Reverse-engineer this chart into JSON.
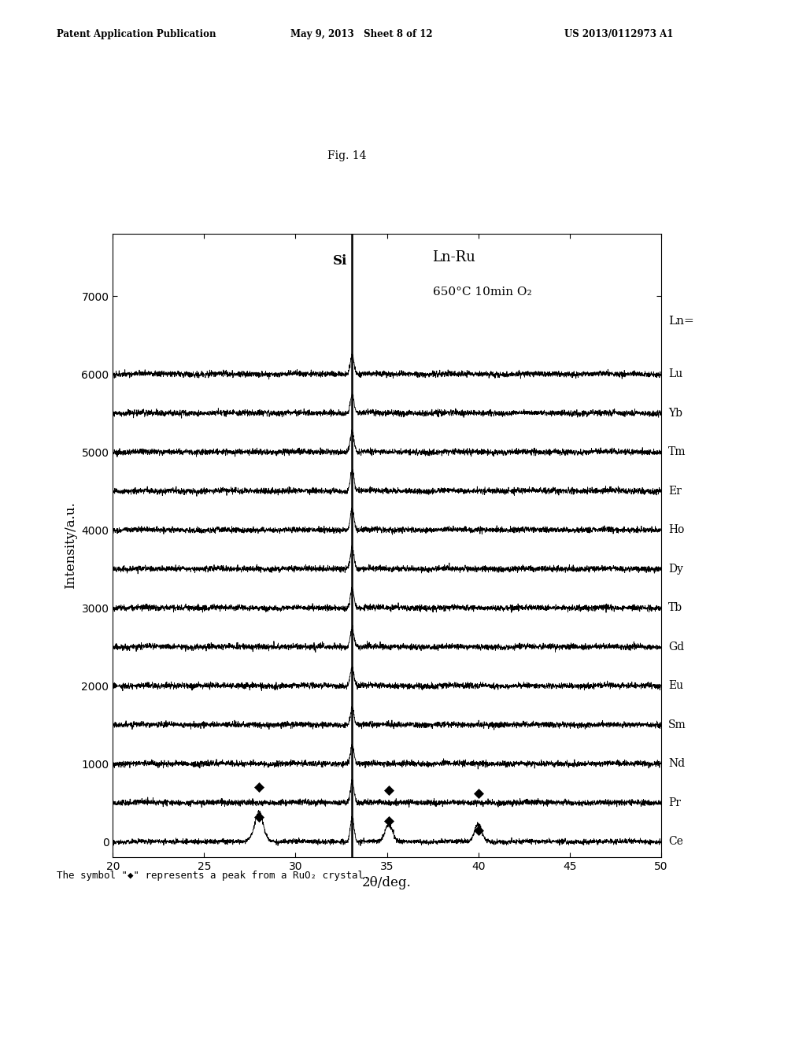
{
  "title": "Fig. 14",
  "xlabel": "2θ/deg.",
  "ylabel": "Intensity/a.u.",
  "xlim": [
    20,
    50
  ],
  "ylim": [
    -200,
    7800
  ],
  "xticks": [
    20,
    25,
    30,
    35,
    40,
    45,
    50
  ],
  "yticks": [
    0,
    1000,
    2000,
    3000,
    4000,
    5000,
    6000,
    7000
  ],
  "series_labels": [
    "Lu",
    "Yb",
    "Tm",
    "Er",
    "Ho",
    "Dy",
    "Tb",
    "Gd",
    "Eu",
    "Sm",
    "Nd",
    "Pr",
    "Ce"
  ],
  "series_offsets": [
    6000,
    5500,
    5000,
    4500,
    4000,
    3500,
    3000,
    2500,
    2000,
    1500,
    1000,
    500,
    0
  ],
  "si_peak_x": 33.1,
  "ruo2_peaks_ce": [
    28.0,
    35.1,
    40.0
  ],
  "ruo2_peak_height_ce": 220,
  "header_left": "Patent Application Publication",
  "header_center": "May 9, 2013   Sheet 8 of 12",
  "header_right": "US 2013/0112973 A1",
  "bg_color": "#ffffff",
  "line_color": "#000000",
  "seed": 42
}
